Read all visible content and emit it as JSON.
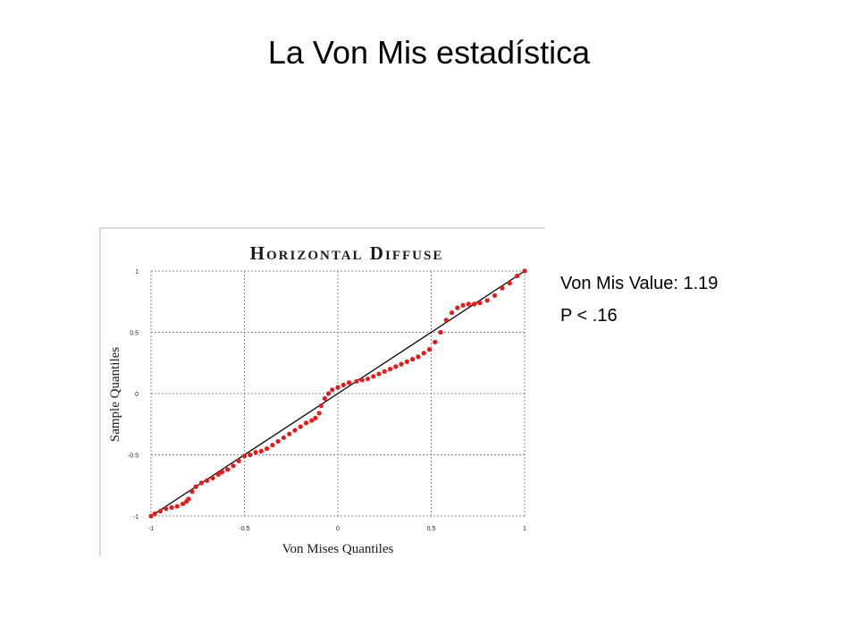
{
  "slide": {
    "title": "La Von Mis estadística",
    "stats": {
      "value_line": "Von Mis Value: 1.19",
      "p_line": "P < .16"
    }
  },
  "colors": {
    "points": "#e31b1b",
    "reference_line": "#000000",
    "grid": "#888888",
    "title_text": "#1a1a1a"
  },
  "chart_data": {
    "type": "scatter",
    "title": "Horizontal Diffuse",
    "xlabel": "Von Mises Quantiles",
    "ylabel": "Sample Quantiles",
    "xlim": [
      -1,
      1
    ],
    "ylim": [
      -1,
      1
    ],
    "xticks": [
      "-1",
      "-0.5",
      "0",
      "0.5",
      "1"
    ],
    "yticks": [
      "-1",
      "-0.5",
      "0",
      "0.5",
      "1"
    ],
    "grid": true,
    "reference_line": {
      "from": [
        -1,
        -1
      ],
      "to": [
        1,
        1
      ]
    },
    "series": [
      {
        "values": [
          [
            -1.0,
            -1.0
          ],
          [
            -0.98,
            -0.98
          ],
          [
            -0.95,
            -0.96
          ],
          [
            -0.92,
            -0.94
          ],
          [
            -0.89,
            -0.93
          ],
          [
            -0.86,
            -0.92
          ],
          [
            -0.83,
            -0.9
          ],
          [
            -0.81,
            -0.88
          ],
          [
            -0.8,
            -0.86
          ],
          [
            -0.78,
            -0.8
          ],
          [
            -0.76,
            -0.76
          ],
          [
            -0.73,
            -0.73
          ],
          [
            -0.7,
            -0.71
          ],
          [
            -0.67,
            -0.69
          ],
          [
            -0.64,
            -0.66
          ],
          [
            -0.62,
            -0.64
          ],
          [
            -0.59,
            -0.62
          ],
          [
            -0.56,
            -0.59
          ],
          [
            -0.53,
            -0.55
          ],
          [
            -0.5,
            -0.51
          ],
          [
            -0.47,
            -0.5
          ],
          [
            -0.44,
            -0.48
          ],
          [
            -0.41,
            -0.47
          ],
          [
            -0.38,
            -0.45
          ],
          [
            -0.35,
            -0.42
          ],
          [
            -0.32,
            -0.39
          ],
          [
            -0.29,
            -0.36
          ],
          [
            -0.26,
            -0.33
          ],
          [
            -0.23,
            -0.3
          ],
          [
            -0.2,
            -0.27
          ],
          [
            -0.17,
            -0.24
          ],
          [
            -0.14,
            -0.22
          ],
          [
            -0.12,
            -0.2
          ],
          [
            -0.1,
            -0.16
          ],
          [
            -0.09,
            -0.1
          ],
          [
            -0.07,
            -0.04
          ],
          [
            -0.05,
            0.0
          ],
          [
            -0.03,
            0.03
          ],
          [
            0.0,
            0.05
          ],
          [
            0.03,
            0.07
          ],
          [
            0.06,
            0.09
          ],
          [
            0.1,
            0.1
          ],
          [
            0.13,
            0.11
          ],
          [
            0.16,
            0.12
          ],
          [
            0.19,
            0.14
          ],
          [
            0.22,
            0.16
          ],
          [
            0.25,
            0.18
          ],
          [
            0.28,
            0.2
          ],
          [
            0.31,
            0.22
          ],
          [
            0.34,
            0.24
          ],
          [
            0.37,
            0.26
          ],
          [
            0.4,
            0.28
          ],
          [
            0.43,
            0.3
          ],
          [
            0.46,
            0.33
          ],
          [
            0.49,
            0.36
          ],
          [
            0.52,
            0.42
          ],
          [
            0.55,
            0.5
          ],
          [
            0.58,
            0.6
          ],
          [
            0.61,
            0.66
          ],
          [
            0.64,
            0.7
          ],
          [
            0.67,
            0.72
          ],
          [
            0.7,
            0.73
          ],
          [
            0.73,
            0.73
          ],
          [
            0.76,
            0.74
          ],
          [
            0.8,
            0.76
          ],
          [
            0.84,
            0.8
          ],
          [
            0.88,
            0.86
          ],
          [
            0.92,
            0.9
          ],
          [
            0.96,
            0.96
          ],
          [
            1.0,
            1.0
          ]
        ]
      }
    ]
  }
}
